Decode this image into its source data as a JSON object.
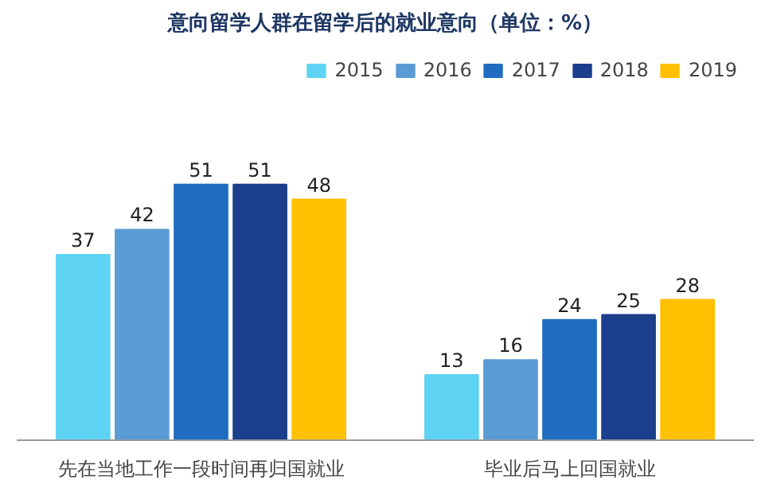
{
  "chart_data": {
    "type": "bar",
    "title": "意向留学人群在留学后的就业意向（单位：%）",
    "categories": [
      "先在当地工作一段时间再归国就业",
      "毕业后马上回国就业"
    ],
    "series": [
      {
        "name": "2015",
        "color": "#5fd3f3",
        "values": [
          37,
          13
        ]
      },
      {
        "name": "2016",
        "color": "#5b9bd5",
        "values": [
          42,
          16
        ]
      },
      {
        "name": "2017",
        "color": "#1f6cc0",
        "values": [
          51,
          24
        ]
      },
      {
        "name": "2018",
        "color": "#1b3f8c",
        "values": [
          51,
          25
        ]
      },
      {
        "name": "2019",
        "color": "#ffc000",
        "values": [
          48,
          28
        ]
      }
    ],
    "data_labels": true,
    "tick_labels": "x",
    "legend": "top right",
    "grid": false
  }
}
